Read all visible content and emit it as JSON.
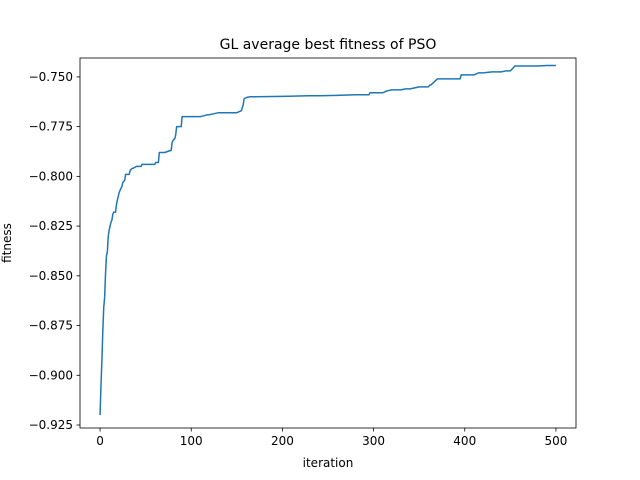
{
  "chart_data": {
    "type": "line",
    "title": "GL average best fitness of PSO",
    "xlabel": "iteration",
    "ylabel": "fitness",
    "xlim": [
      -22,
      522
    ],
    "ylim": [
      -0.9265,
      -0.7405
    ],
    "xticks": [
      0,
      100,
      200,
      300,
      400,
      500
    ],
    "xtick_labels": [
      "0",
      "100",
      "200",
      "300",
      "400",
      "500"
    ],
    "yticks": [
      -0.925,
      -0.9,
      -0.875,
      -0.85,
      -0.825,
      -0.8,
      -0.775,
      -0.75
    ],
    "ytick_labels": [
      "−0.925",
      "−0.900",
      "−0.875",
      "−0.850",
      "−0.825",
      "−0.800",
      "−0.775",
      "−0.750"
    ],
    "grid": false,
    "line_color": "#1f77b4",
    "series": [
      {
        "x": [
          0,
          1,
          2,
          3,
          4,
          5,
          6,
          7,
          8,
          9,
          10,
          11,
          12,
          13,
          14,
          15,
          17,
          18,
          20,
          21,
          22,
          24,
          25,
          27,
          28,
          30,
          32,
          33,
          35,
          36,
          40,
          41,
          45,
          46,
          50,
          51,
          55,
          56,
          60,
          61,
          64,
          65,
          70,
          71,
          77,
          78,
          79,
          80,
          82,
          83,
          84,
          85,
          88,
          89,
          90,
          96,
          97,
          100,
          110,
          118,
          120,
          130,
          135,
          140,
          150,
          155,
          157,
          158,
          160,
          161,
          165,
          170,
          200,
          230,
          240,
          260,
          280,
          295,
          296,
          310,
          315,
          320,
          330,
          335,
          340,
          350,
          360,
          362,
          363,
          370,
          371,
          395,
          396,
          410,
          415,
          420,
          430,
          440,
          445,
          450,
          455,
          460,
          480,
          490,
          495,
          500
        ],
        "y": [
          -0.92,
          -0.905,
          -0.893,
          -0.878,
          -0.866,
          -0.861,
          -0.849,
          -0.84,
          -0.838,
          -0.83,
          -0.827,
          -0.825,
          -0.823,
          -0.822,
          -0.819,
          -0.818,
          -0.818,
          -0.814,
          -0.81,
          -0.808,
          -0.807,
          -0.805,
          -0.803,
          -0.802,
          -0.799,
          -0.799,
          -0.799,
          -0.797,
          -0.796,
          -0.796,
          -0.795,
          -0.795,
          -0.795,
          -0.794,
          -0.794,
          -0.794,
          -0.794,
          -0.794,
          -0.794,
          -0.793,
          -0.793,
          -0.788,
          -0.788,
          -0.788,
          -0.787,
          -0.787,
          -0.783,
          -0.782,
          -0.781,
          -0.779,
          -0.775,
          -0.775,
          -0.775,
          -0.775,
          -0.77,
          -0.77,
          -0.77,
          -0.77,
          -0.77,
          -0.769,
          -0.769,
          -0.768,
          -0.768,
          -0.768,
          -0.768,
          -0.767,
          -0.764,
          -0.761,
          -0.7605,
          -0.7603,
          -0.76,
          -0.76,
          -0.7598,
          -0.7595,
          -0.7595,
          -0.7593,
          -0.759,
          -0.759,
          -0.758,
          -0.758,
          -0.757,
          -0.7565,
          -0.7565,
          -0.756,
          -0.756,
          -0.755,
          -0.755,
          -0.754,
          -0.754,
          -0.751,
          -0.751,
          -0.751,
          -0.749,
          -0.749,
          -0.748,
          -0.748,
          -0.7475,
          -0.7475,
          -0.747,
          -0.747,
          -0.7445,
          -0.7445,
          -0.7445,
          -0.7443,
          -0.7443,
          -0.7443
        ]
      }
    ]
  }
}
